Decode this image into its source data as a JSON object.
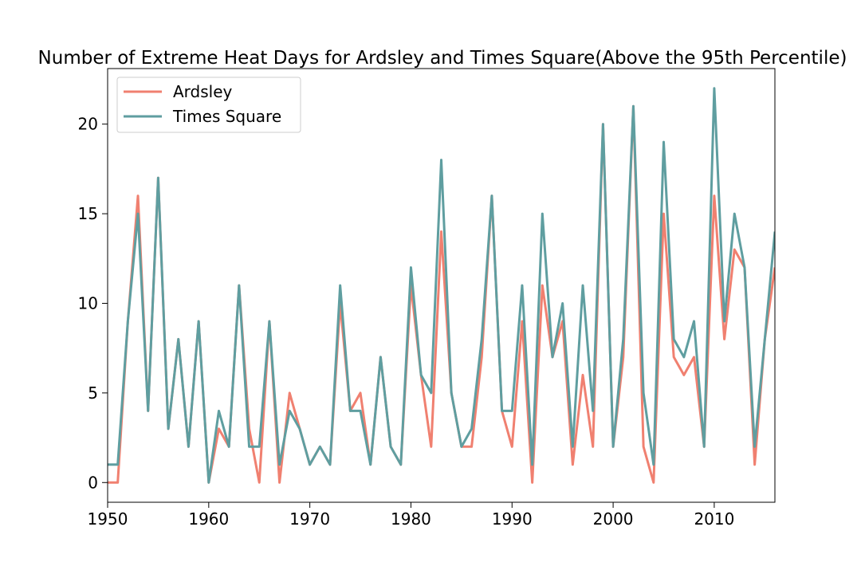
{
  "chart_data": {
    "type": "line",
    "title": "Number of Extreme Heat Days for Ardsley and Times Square(Above the 95th Percentile)",
    "xlabel": "",
    "ylabel": "",
    "xlim": [
      1950,
      2016
    ],
    "ylim": [
      -1.1,
      23.1
    ],
    "xticks": [
      1950,
      1960,
      1970,
      1980,
      1990,
      2000,
      2010
    ],
    "yticks": [
      0,
      5,
      10,
      15,
      20
    ],
    "grid": false,
    "legend_position": "top-left",
    "x": [
      1950,
      1951,
      1952,
      1953,
      1954,
      1955,
      1956,
      1957,
      1958,
      1959,
      1960,
      1961,
      1962,
      1963,
      1964,
      1965,
      1966,
      1967,
      1968,
      1969,
      1970,
      1971,
      1972,
      1973,
      1974,
      1975,
      1976,
      1977,
      1978,
      1979,
      1980,
      1981,
      1982,
      1983,
      1984,
      1985,
      1986,
      1987,
      1988,
      1989,
      1990,
      1991,
      1992,
      1993,
      1994,
      1995,
      1996,
      1997,
      1998,
      1999,
      2000,
      2001,
      2002,
      2003,
      2004,
      2005,
      2006,
      2007,
      2008,
      2009,
      2010,
      2011,
      2012,
      2013,
      2014,
      2015,
      2016
    ],
    "series": [
      {
        "name": "Ardsley",
        "color": "#f08070",
        "values": [
          0,
          0,
          9,
          16,
          4,
          17,
          3,
          8,
          2,
          9,
          0,
          3,
          2,
          11,
          3,
          0,
          9,
          0,
          5,
          3,
          1,
          2,
          1,
          10,
          4,
          5,
          1,
          7,
          2,
          1,
          11,
          6,
          2,
          14,
          5,
          2,
          2,
          7,
          16,
          4,
          2,
          9,
          0,
          11,
          7,
          9,
          1,
          6,
          2,
          20,
          2,
          7,
          21,
          2,
          0,
          15,
          7,
          6,
          7,
          2,
          16,
          8,
          13,
          12,
          1,
          8,
          12
        ]
      },
      {
        "name": "Times Square",
        "color": "#5f9ea0",
        "values": [
          1,
          1,
          9,
          15,
          4,
          17,
          3,
          8,
          2,
          9,
          0,
          4,
          2,
          11,
          2,
          2,
          9,
          1,
          4,
          3,
          1,
          2,
          1,
          11,
          4,
          4,
          1,
          7,
          2,
          1,
          12,
          6,
          5,
          18,
          5,
          2,
          3,
          8,
          16,
          4,
          4,
          11,
          1,
          15,
          7,
          10,
          2,
          11,
          4,
          20,
          2,
          8,
          21,
          5,
          1,
          19,
          8,
          7,
          9,
          2,
          22,
          9,
          15,
          12,
          2,
          8,
          14
        ]
      }
    ]
  }
}
